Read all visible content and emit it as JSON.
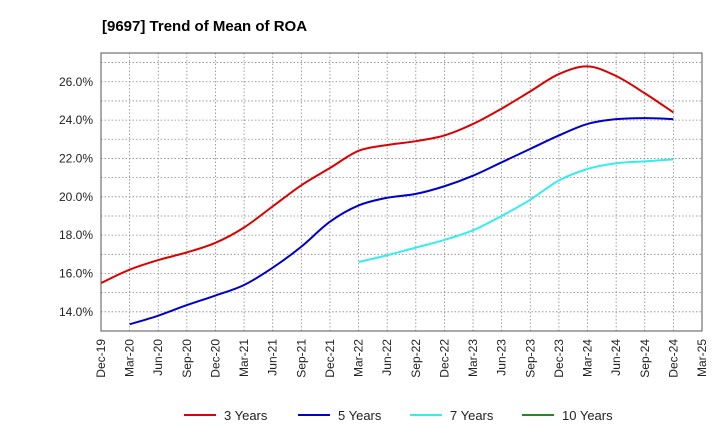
{
  "chart_data": {
    "type": "line",
    "title": "[9697]  Trend of Mean of ROA",
    "xlabel": "",
    "ylabel": "",
    "x_tick_labels": [
      "Dec-19",
      "Mar-20",
      "Jun-20",
      "Sep-20",
      "Dec-20",
      "Mar-21",
      "Jun-21",
      "Sep-21",
      "Dec-21",
      "Mar-22",
      "Jun-22",
      "Sep-22",
      "Dec-22",
      "Mar-23",
      "Jun-23",
      "Sep-23",
      "Dec-23",
      "Mar-24",
      "Jun-24",
      "Sep-24",
      "Dec-24",
      "Mar-25"
    ],
    "y_tick_labels": [
      "14.0%",
      "16.0%",
      "18.0%",
      "20.0%",
      "22.0%",
      "24.0%",
      "26.0%"
    ],
    "ylim": [
      13.0,
      27.5
    ],
    "grid": true,
    "legend_position": "bottom",
    "series": [
      {
        "name": "3 Years",
        "color": "#dd0000",
        "x": [
          "Dec-19",
          "Mar-20",
          "Jun-20",
          "Sep-20",
          "Dec-20",
          "Mar-21",
          "Jun-21",
          "Sep-21",
          "Dec-21",
          "Mar-22",
          "Jun-22",
          "Sep-22",
          "Dec-22",
          "Mar-23",
          "Jun-23",
          "Sep-23",
          "Dec-23",
          "Mar-24",
          "Jun-24",
          "Sep-24",
          "Dec-24"
        ],
        "values": [
          15.5,
          16.2,
          16.7,
          17.1,
          17.6,
          18.4,
          19.5,
          20.6,
          21.5,
          22.4,
          22.7,
          22.9,
          23.2,
          23.8,
          24.6,
          25.5,
          26.4,
          26.8,
          26.3,
          25.4,
          24.4
        ]
      },
      {
        "name": "5 Years",
        "color": "#0000cc",
        "x": [
          "Mar-20",
          "Jun-20",
          "Sep-20",
          "Dec-20",
          "Mar-21",
          "Jun-21",
          "Sep-21",
          "Dec-21",
          "Mar-22",
          "Jun-22",
          "Sep-22",
          "Dec-22",
          "Mar-23",
          "Jun-23",
          "Sep-23",
          "Dec-23",
          "Mar-24",
          "Jun-24",
          "Sep-24",
          "Dec-24"
        ],
        "values": [
          13.35,
          13.8,
          14.35,
          14.85,
          15.4,
          16.3,
          17.4,
          18.7,
          19.55,
          19.95,
          20.15,
          20.55,
          21.1,
          21.8,
          22.5,
          23.2,
          23.8,
          24.05,
          24.1,
          24.05
        ]
      },
      {
        "name": "7 Years",
        "color": "#33eeee",
        "x": [
          "Mar-22",
          "Jun-22",
          "Sep-22",
          "Dec-22",
          "Mar-23",
          "Jun-23",
          "Sep-23",
          "Dec-23",
          "Mar-24",
          "Jun-24",
          "Sep-24",
          "Dec-24"
        ],
        "values": [
          16.6,
          16.95,
          17.35,
          17.75,
          18.25,
          19.0,
          19.85,
          20.85,
          21.45,
          21.75,
          21.85,
          21.95
        ]
      },
      {
        "name": "10 Years",
        "color": "#228822",
        "x": [],
        "values": []
      }
    ]
  }
}
